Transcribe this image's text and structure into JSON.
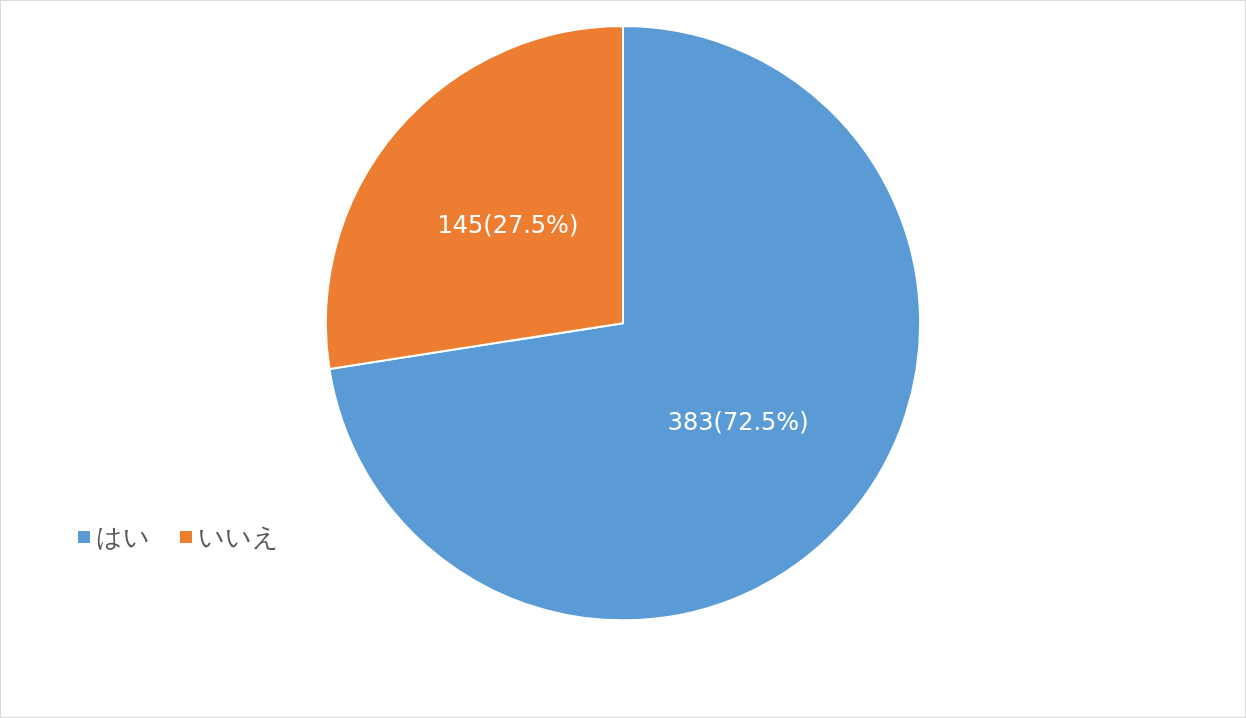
{
  "chart_data": {
    "type": "pie",
    "categories": [
      "はい",
      "いいえ"
    ],
    "values": [
      383,
      145
    ],
    "colors": [
      "#5b9bd5",
      "#ed7d31"
    ],
    "value_labels": [
      "383(72.5%)",
      "145(27.5%)"
    ],
    "legend": "left"
  }
}
